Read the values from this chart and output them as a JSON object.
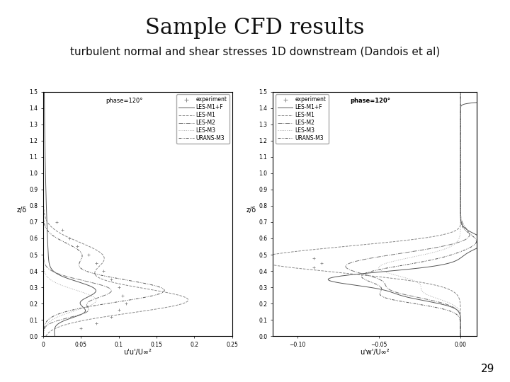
{
  "title": "Sample CFD results",
  "subtitle": "turbulent normal and shear stresses 1D downstream (Dandois et al)",
  "title_fontsize": 22,
  "subtitle_fontsize": 11,
  "page_number": "29",
  "left_plot": {
    "xlabel": "u'u'/U∞²",
    "ylabel": "z/δ",
    "xlim": [
      0,
      0.25
    ],
    "ylim": [
      0,
      1.5
    ],
    "xticks": [
      0,
      0.05,
      0.1,
      0.15,
      0.2,
      0.25
    ],
    "yticks": [
      0,
      0.1,
      0.2,
      0.3,
      0.4,
      0.5,
      0.6,
      0.7,
      0.8,
      0.9,
      1.0,
      1.1,
      1.2,
      1.3,
      1.4,
      1.5
    ],
    "phase_label": "phase=120°"
  },
  "right_plot": {
    "xlabel": "u'w'/U∞²",
    "ylabel": "z/δ",
    "xlim": [
      -0.115,
      0.01
    ],
    "ylim": [
      0,
      1.5
    ],
    "xticks": [
      -0.1,
      -0.05,
      0
    ],
    "yticks": [
      0,
      0.1,
      0.2,
      0.3,
      0.4,
      0.5,
      0.6,
      0.7,
      0.8,
      0.9,
      1.0,
      1.1,
      1.2,
      1.3,
      1.4,
      1.5
    ],
    "phase_label": "phase=120°"
  },
  "background_color": "#ffffff",
  "axes_color": "#cccccc",
  "line_colors": {
    "m1f": "#555555",
    "m1": "#888888",
    "m2": "#777777",
    "m3": "#aaaaaa",
    "urans": "#555555",
    "exp": "#888888"
  }
}
